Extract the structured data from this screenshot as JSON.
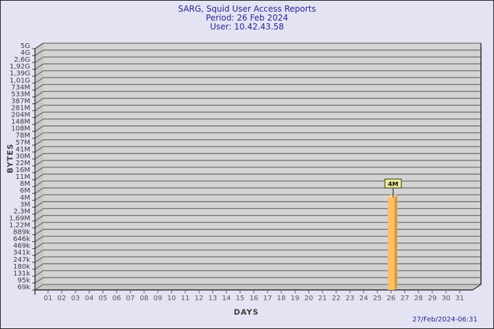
{
  "header": {
    "title": "SARG, Squid User Access Reports",
    "period": "Period: 26 Feb 2024",
    "user": "User: 10.42.43.58"
  },
  "footer": {
    "generated": "27/Feb/2024-06:31"
  },
  "chart_data": {
    "type": "bar",
    "title": "SARG, Squid User Access Reports",
    "subtitle": [
      "Period: 26 Feb 2024",
      "User: 10.42.43.58"
    ],
    "xlabel": "DAYS",
    "ylabel": "BYTES",
    "y_scale": "log",
    "x_categories": [
      "01",
      "02",
      "03",
      "04",
      "05",
      "06",
      "07",
      "08",
      "09",
      "10",
      "11",
      "12",
      "13",
      "14",
      "15",
      "16",
      "17",
      "18",
      "19",
      "20",
      "21",
      "22",
      "23",
      "24",
      "25",
      "26",
      "27",
      "28",
      "29",
      "30",
      "31"
    ],
    "y_ticks_top_to_bottom": [
      "5G",
      "4G",
      "2,6G",
      "1,92G",
      "1,39G",
      "1,01G",
      "734M",
      "533M",
      "387M",
      "281M",
      "204M",
      "148M",
      "108M",
      "78M",
      "57M",
      "41M",
      "30M",
      "22M",
      "16M",
      "11M",
      "8M",
      "6M",
      "4M",
      "3M",
      "2,3M",
      "1,69M",
      "1,22M",
      "889k",
      "646k",
      "469k",
      "341k",
      "247k",
      "180k",
      "131k",
      "95k",
      "69k"
    ],
    "bars": [
      {
        "x": "26",
        "value_label": "4M"
      }
    ],
    "legend": null,
    "grid": "horizontal",
    "style": "3d",
    "colors": {
      "page_bg": "#e3e3f3",
      "title_text": "#26268f",
      "plot_bg": "#d3d3d3",
      "wall_bg": "#c7c7c7",
      "grid_line": "#6e6e6e",
      "edge_line": "#2a2a2a",
      "wall_line": "#555555",
      "y_tick_text": "#3a3a3a",
      "x_tick_text": "#555555",
      "bar_front": "#fdc066",
      "bar_side": "#d79c3f",
      "bar_top": "#ffda90",
      "flag_bg": "#ebeba0",
      "flag_border": "#50501e",
      "flag_text": "#111111",
      "flag_stem": "#333333"
    }
  }
}
